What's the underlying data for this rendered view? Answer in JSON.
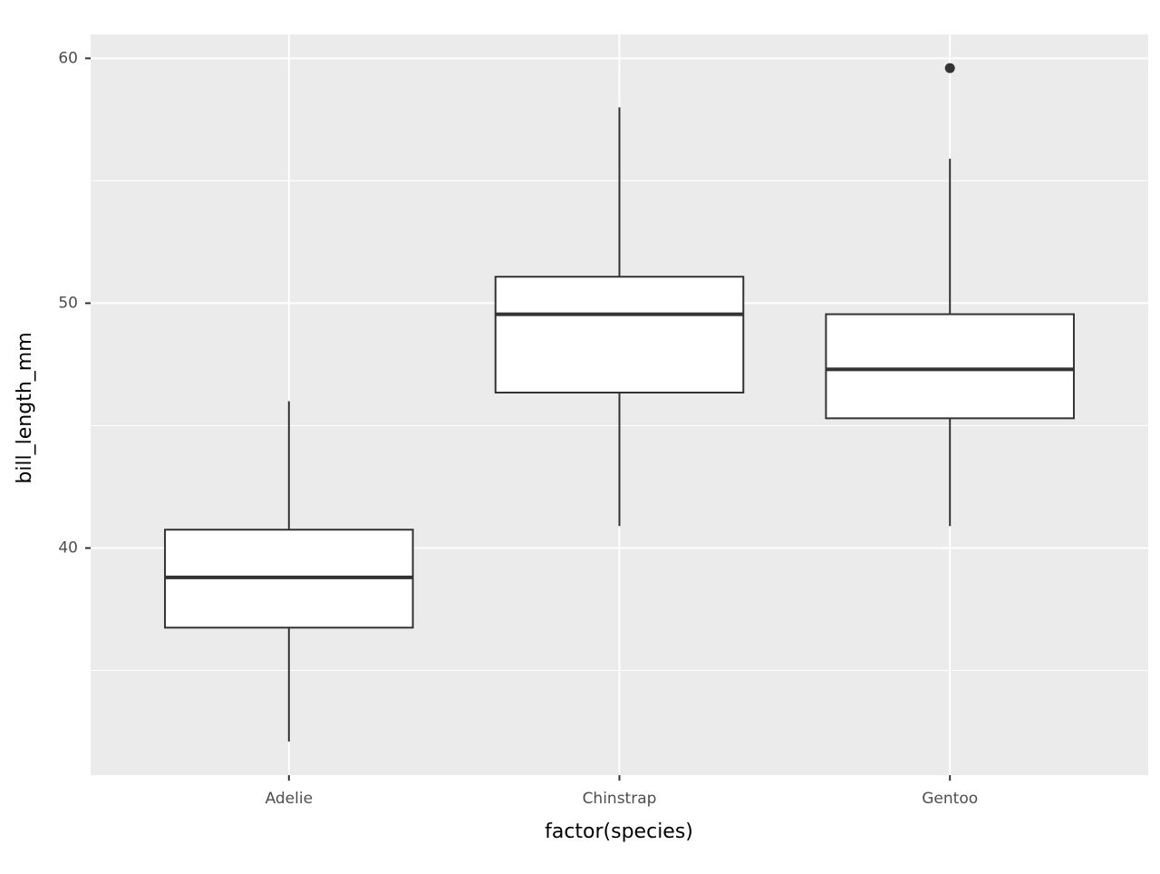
{
  "chart_data": {
    "type": "boxplot",
    "x_label": "factor(species)",
    "y_label": "bill_length_mm",
    "categories": [
      "Adelie",
      "Chinstrap",
      "Gentoo"
    ],
    "min": [
      32.1,
      40.9,
      40.9
    ],
    "q1": [
      36.75,
      46.35,
      45.3
    ],
    "median": [
      38.8,
      49.55,
      47.3
    ],
    "q3": [
      40.75,
      51.08,
      49.55
    ],
    "max": [
      46.0,
      58.0,
      55.9
    ],
    "outliers": [
      [],
      [],
      [
        59.6
      ]
    ],
    "ylim": [
      30.725,
      60.975
    ],
    "yticks": [
      40,
      50,
      60
    ],
    "minor_yticks": [
      35,
      45,
      55
    ],
    "grid": true,
    "panel_color": "#ebebeb",
    "box_fill": "#ffffff",
    "line_color": "#333333"
  }
}
